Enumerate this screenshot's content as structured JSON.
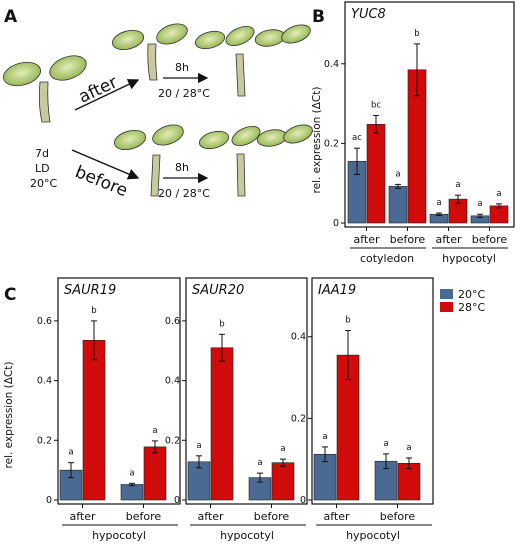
{
  "panels": {
    "a": {
      "letter": "A",
      "after_label": "after",
      "before_label": "before",
      "start_conditions": [
        "7d",
        "LD",
        "20°C"
      ],
      "treatment_time": "8h",
      "treatment_temp": "20 / 28°C"
    },
    "b": {
      "letter": "B"
    },
    "c": {
      "letter": "C"
    }
  },
  "colors": {
    "c20": "#4a6a93",
    "c28": "#d10a0a"
  },
  "legend": {
    "items": [
      "20°C",
      "28°C"
    ]
  },
  "chart_data": [
    {
      "id": "yuc8",
      "panel": "B",
      "type": "bar",
      "title": "YUC8",
      "ylabel": "rel. expression (ΔCt)",
      "ylim": [
        0,
        0.5
      ],
      "yticks": [
        "0",
        "0.2",
        "0.4"
      ],
      "groups": [
        {
          "timing": "after",
          "tissue": "cotyledon",
          "values": [
            0.155,
            0.248
          ],
          "errors": [
            0.033,
            0.022
          ],
          "letters": [
            "ac",
            "bc"
          ]
        },
        {
          "timing": "before",
          "tissue": "cotyledon",
          "values": [
            0.092,
            0.385
          ],
          "errors": [
            0.005,
            0.065
          ],
          "letters": [
            "a",
            "b"
          ]
        },
        {
          "timing": "after",
          "tissue": "hypocotyl",
          "values": [
            0.022,
            0.06
          ],
          "errors": [
            0.003,
            0.01
          ],
          "letters": [
            "a",
            "a"
          ]
        },
        {
          "timing": "before",
          "tissue": "hypocotyl",
          "values": [
            0.018,
            0.043
          ],
          "errors": [
            0.004,
            0.005
          ],
          "letters": [
            "a",
            "a"
          ]
        }
      ],
      "tissues": [
        "cotyledon",
        "hypocotyl"
      ]
    },
    {
      "id": "saur19",
      "panel": "C",
      "type": "bar",
      "title": "SAUR19",
      "ylabel": "rel. expression (ΔCt)",
      "ylim": [
        0,
        0.67
      ],
      "yticks": [
        "0",
        "0.2",
        "0.4",
        "0.6"
      ],
      "groups": [
        {
          "timing": "after",
          "tissue": "hypocotyl",
          "values": [
            0.1,
            0.535
          ],
          "errors": [
            0.025,
            0.065
          ],
          "letters": [
            "a",
            "b"
          ]
        },
        {
          "timing": "before",
          "tissue": "hypocotyl",
          "values": [
            0.052,
            0.178
          ],
          "errors": [
            0.004,
            0.02
          ],
          "letters": [
            "a",
            "a"
          ]
        }
      ],
      "tissues": [
        "hypocotyl"
      ]
    },
    {
      "id": "saur20",
      "panel": "C",
      "type": "bar",
      "title": "SAUR20",
      "ylabel": "",
      "ylim": [
        0,
        0.67
      ],
      "yticks": [
        "0",
        "0.2",
        "0.4",
        "0.6"
      ],
      "groups": [
        {
          "timing": "after",
          "tissue": "hypocotyl",
          "values": [
            0.128,
            0.51
          ],
          "errors": [
            0.02,
            0.045
          ],
          "letters": [
            "a",
            "b"
          ]
        },
        {
          "timing": "before",
          "tissue": "hypocotyl",
          "values": [
            0.075,
            0.125
          ],
          "errors": [
            0.015,
            0.012
          ],
          "letters": [
            "a",
            "a"
          ]
        }
      ],
      "tissues": [
        "hypocotyl"
      ]
    },
    {
      "id": "iaa19",
      "panel": "C",
      "type": "bar",
      "title": "IAA19",
      "ylabel": "",
      "ylim": [
        0,
        0.49
      ],
      "yticks": [
        "0",
        "0.2",
        "0.4"
      ],
      "groups": [
        {
          "timing": "after",
          "tissue": "hypocotyl",
          "values": [
            0.112,
            0.355
          ],
          "errors": [
            0.018,
            0.06
          ],
          "letters": [
            "a",
            "b"
          ]
        },
        {
          "timing": "before",
          "tissue": "hypocotyl",
          "values": [
            0.095,
            0.09
          ],
          "errors": [
            0.018,
            0.013
          ],
          "letters": [
            "a",
            "a"
          ]
        }
      ],
      "tissues": [
        "hypocotyl"
      ]
    }
  ]
}
